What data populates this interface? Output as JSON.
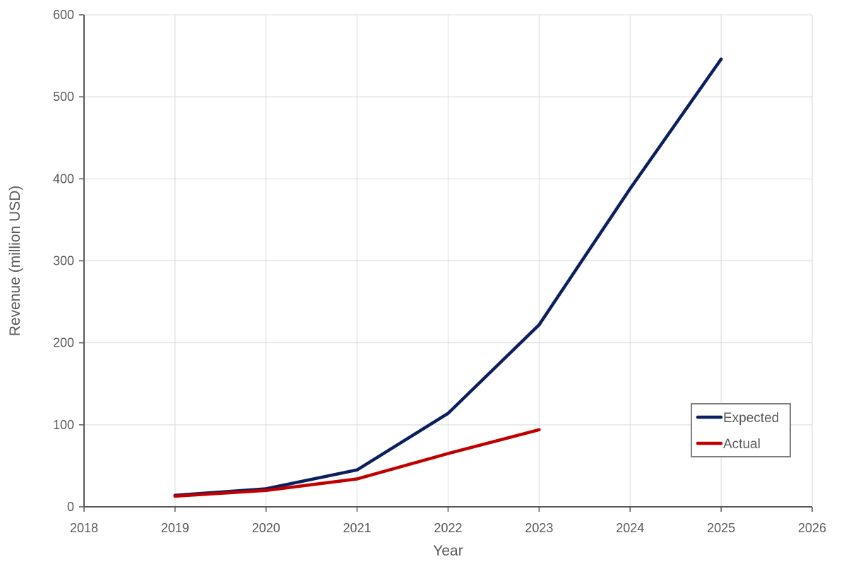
{
  "chart_data": {
    "type": "line",
    "title": "",
    "xlabel": "Year",
    "ylabel": "Revenue (million USD)",
    "xlim": [
      2018,
      2026
    ],
    "ylim": [
      0,
      600
    ],
    "x_ticks": [
      "2018",
      "2019",
      "2020",
      "2021",
      "2022",
      "2023",
      "2024",
      "2025",
      "2026"
    ],
    "y_ticks": [
      "0",
      "100",
      "200",
      "300",
      "400",
      "500",
      "600"
    ],
    "grid": true,
    "legend_position": "bottom-right",
    "series": [
      {
        "name": "Expected",
        "color": "#0a1f5c",
        "x": [
          2019,
          2020,
          2021,
          2022,
          2023,
          2024,
          2025
        ],
        "y": [
          14,
          22,
          45,
          114,
          222,
          388,
          546
        ]
      },
      {
        "name": "Actual",
        "color": "#c00000",
        "x": [
          2019,
          2020,
          2021,
          2022,
          2023
        ],
        "y": [
          13,
          20,
          34,
          65,
          94
        ]
      }
    ]
  }
}
